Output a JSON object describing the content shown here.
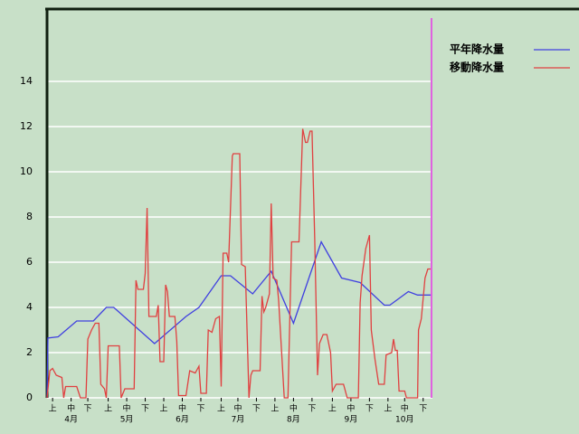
{
  "chart_data": {
    "type": "line",
    "ylim": [
      0,
      17.2
    ],
    "yticks": [
      0,
      2,
      4,
      6,
      8,
      10,
      12,
      14
    ],
    "grid": true,
    "xlim": [
      0,
      208
    ],
    "xticks": [
      {
        "value": 3,
        "label": "上"
      },
      {
        "value": 13,
        "label": "中"
      },
      {
        "value": 22,
        "label": "下"
      },
      {
        "value": 33,
        "label": "上"
      },
      {
        "value": 43,
        "label": "中"
      },
      {
        "value": 53,
        "label": "下"
      },
      {
        "value": 63,
        "label": "上"
      },
      {
        "value": 73,
        "label": "中"
      },
      {
        "value": 83,
        "label": "下"
      },
      {
        "value": 94,
        "label": "上"
      },
      {
        "value": 103,
        "label": "中"
      },
      {
        "value": 113,
        "label": "下"
      },
      {
        "value": 123,
        "label": "上"
      },
      {
        "value": 133,
        "label": "中"
      },
      {
        "value": 143,
        "label": "下"
      },
      {
        "value": 154,
        "label": "上"
      },
      {
        "value": 164,
        "label": "中"
      },
      {
        "value": 174,
        "label": "下"
      },
      {
        "value": 184,
        "label": "上"
      },
      {
        "value": 193,
        "label": "中"
      },
      {
        "value": 203,
        "label": "下"
      }
    ],
    "month_labels": [
      {
        "value": 13,
        "label": "4月"
      },
      {
        "value": 43,
        "label": "5月"
      },
      {
        "value": 73,
        "label": "6月"
      },
      {
        "value": 103,
        "label": "7月"
      },
      {
        "value": 133,
        "label": "8月"
      },
      {
        "value": 164,
        "label": "9月"
      },
      {
        "value": 193,
        "label": "10月"
      }
    ],
    "marker_x": 207.5,
    "marker_color": "#e060e0",
    "legend": "right",
    "series": [
      {
        "name": "平年降水量",
        "color": "#4040e0",
        "x": [
          0,
          0.5,
          6,
          16,
          25,
          32,
          36,
          58,
          75,
          82,
          94,
          99,
          111,
          121,
          133,
          148,
          159,
          169,
          182,
          185,
          195,
          200,
          208
        ],
        "values": [
          0,
          2.65,
          2.7,
          3.4,
          3.4,
          4.0,
          4.0,
          2.4,
          3.6,
          4.0,
          5.4,
          5.4,
          4.6,
          5.6,
          3.3,
          6.9,
          5.3,
          5.1,
          4.1,
          4.1,
          4.7,
          4.55,
          4.55
        ]
      },
      {
        "name": "移動降水量",
        "color": "#e04040",
        "x": [
          0,
          1.5,
          3,
          5,
          8,
          9,
          10,
          16,
          18,
          21,
          22,
          24,
          26,
          28,
          29,
          31,
          32,
          33,
          39,
          40,
          42,
          47,
          48,
          49,
          52,
          53,
          54,
          55,
          59,
          60,
          61,
          63,
          64,
          65,
          66,
          69,
          70,
          71,
          75,
          77,
          80,
          82,
          83,
          86,
          87,
          89,
          91,
          93,
          94,
          95,
          97,
          98,
          100,
          100.5,
          104,
          105,
          107,
          109,
          110,
          111,
          115,
          116,
          117,
          118,
          120,
          121,
          122,
          124,
          125,
          128,
          130,
          132,
          136,
          138,
          139.5,
          140.5,
          142,
          143,
          144.5,
          146,
          147,
          149,
          151,
          153,
          154,
          156,
          160,
          162,
          168,
          169,
          170,
          172,
          174,
          175,
          177,
          179,
          182,
          183,
          186,
          187,
          188,
          189,
          190,
          193,
          194,
          200,
          200.5,
          202,
          204,
          205.5,
          207
        ],
        "values": [
          0,
          1.2,
          1.3,
          1.0,
          0.9,
          0,
          0.5,
          0.5,
          0,
          0,
          2.6,
          3.0,
          3.3,
          3.3,
          0.6,
          0.4,
          0,
          2.3,
          2.3,
          0,
          0.4,
          0.4,
          5.2,
          4.8,
          4.8,
          5.5,
          8.4,
          3.6,
          3.6,
          4.1,
          1.6,
          1.6,
          5.0,
          4.7,
          3.6,
          3.6,
          2.5,
          0.1,
          0.1,
          1.2,
          1.1,
          1.4,
          0.2,
          0.2,
          3.0,
          2.9,
          3.5,
          3.6,
          0.5,
          6.4,
          6.4,
          6.0,
          10.7,
          10.8,
          10.8,
          5.9,
          5.8,
          0,
          1.0,
          1.2,
          1.2,
          4.5,
          3.8,
          4.0,
          4.6,
          8.6,
          5.3,
          5.2,
          4.3,
          0,
          0,
          6.9,
          6.9,
          11.9,
          11.3,
          11.3,
          11.8,
          11.8,
          7.0,
          1.0,
          2.4,
          2.8,
          2.8,
          2.0,
          0.3,
          0.6,
          0.6,
          0,
          0,
          4.2,
          5.4,
          6.6,
          7.2,
          3.0,
          1.7,
          0.6,
          0.6,
          1.9,
          2.0,
          2.6,
          2.1,
          2.1,
          0.3,
          0.3,
          0,
          0,
          3.0,
          3.5,
          5.3,
          5.7,
          5.7
        ]
      }
    ]
  }
}
